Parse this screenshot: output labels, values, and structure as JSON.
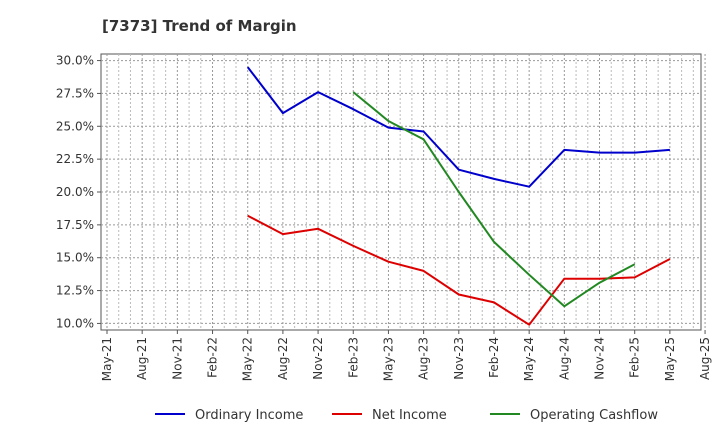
{
  "chart_data": {
    "type": "line",
    "title": "[7373]  Trend of Margin",
    "xlabel": "",
    "ylabel": "",
    "categories": [
      "May-21",
      "Aug-21",
      "Nov-21",
      "Feb-22",
      "May-22",
      "Aug-22",
      "Nov-22",
      "Feb-23",
      "May-23",
      "Aug-23",
      "Nov-23",
      "Feb-24",
      "May-24",
      "Aug-24",
      "Nov-24",
      "Feb-25",
      "May-25",
      "Aug-25"
    ],
    "y_ticks": [
      10.0,
      12.5,
      15.0,
      17.5,
      20.0,
      22.5,
      25.0,
      27.5,
      30.0
    ],
    "y_tick_labels": [
      "10.0%",
      "12.5%",
      "15.0%",
      "17.5%",
      "20.0%",
      "22.5%",
      "25.0%",
      "27.5%",
      "30.0%"
    ],
    "ylim": [
      9.5,
      30.5
    ],
    "grid": true,
    "legend_position": "bottom",
    "series": [
      {
        "name": "Ordinary Income",
        "color": "#0000cc",
        "values": [
          null,
          null,
          null,
          null,
          29.5,
          26.0,
          27.6,
          26.3,
          24.9,
          24.6,
          21.7,
          21.0,
          20.4,
          23.2,
          23.0,
          23.0,
          23.2,
          null
        ]
      },
      {
        "name": "Net Income",
        "color": "#dd0000",
        "values": [
          null,
          null,
          null,
          null,
          18.2,
          16.8,
          17.2,
          15.9,
          14.7,
          14.0,
          12.2,
          11.6,
          9.9,
          13.4,
          13.4,
          13.5,
          14.9,
          null
        ]
      },
      {
        "name": "Operating Cashflow",
        "color": "#228822",
        "values": [
          null,
          null,
          null,
          null,
          null,
          null,
          null,
          27.6,
          25.4,
          24.0,
          20.0,
          16.2,
          13.7,
          11.3,
          13.1,
          14.5,
          null,
          null
        ]
      }
    ]
  }
}
